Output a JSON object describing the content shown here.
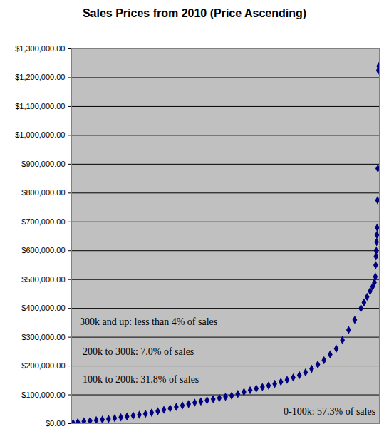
{
  "chart_data": {
    "type": "scatter",
    "title": "Sales Prices from 2010 (Price Ascending)",
    "x": [
      0.5,
      2,
      4,
      6,
      8,
      10,
      12,
      14,
      16,
      18,
      20,
      22,
      24,
      26,
      28,
      30,
      32,
      34,
      36,
      38,
      40,
      42,
      44,
      46,
      48,
      50,
      52,
      54,
      56,
      58,
      60,
      62,
      64,
      66,
      68,
      70,
      72,
      74,
      76,
      78,
      80,
      82,
      84,
      86,
      88,
      90,
      92,
      94,
      95,
      96,
      97,
      97.8,
      98.4,
      98.7,
      98.8,
      98.9,
      99.0,
      99.1,
      99.2,
      99.3,
      99.4,
      99.5,
      99.7,
      99.8
    ],
    "values": [
      2000,
      5000,
      8000,
      10000,
      12000,
      14000,
      16000,
      19000,
      22000,
      25000,
      28000,
      31000,
      34000,
      38000,
      43000,
      48000,
      53000,
      58000,
      63000,
      68000,
      73000,
      77000,
      81000,
      85000,
      89000,
      93000,
      97000,
      103000,
      110000,
      116000,
      122000,
      127000,
      132000,
      138000,
      145000,
      152000,
      160000,
      168000,
      178000,
      190000,
      205000,
      220000,
      240000,
      260000,
      290000,
      325000,
      360000,
      400000,
      420000,
      440000,
      460000,
      475000,
      490000,
      510000,
      550000,
      580000,
      600000,
      630000,
      655000,
      680000,
      775000,
      885000,
      1225000,
      1240000
    ],
    "color": "#000080",
    "marker": "diamond",
    "xlim": [
      0,
      100
    ],
    "ylim": [
      0,
      1300000
    ],
    "yticks": [
      {
        "value": 0,
        "label": "$0.00"
      },
      {
        "value": 100000,
        "label": "$100,000.00"
      },
      {
        "value": 200000,
        "label": "$200,000.00"
      },
      {
        "value": 300000,
        "label": "$300,000.00"
      },
      {
        "value": 400000,
        "label": "$400,000.00"
      },
      {
        "value": 500000,
        "label": "$500,000.00"
      },
      {
        "value": 600000,
        "label": "$600,000.00"
      },
      {
        "value": 700000,
        "label": "$700,000.00"
      },
      {
        "value": 800000,
        "label": "$800,000.00"
      },
      {
        "value": 900000,
        "label": "$900,000.00"
      },
      {
        "value": 1000000,
        "label": "$1,000,000.00"
      },
      {
        "value": 1100000,
        "label": "$1,100,000.00"
      },
      {
        "value": 1200000,
        "label": "$1,200,000.00"
      },
      {
        "value": 1300000,
        "label": "$1,300,000.00"
      }
    ],
    "grid": true,
    "tick_labels": "y",
    "annotations": [
      "300k and up: less than 4% of sales",
      "200k to 300k: 7.0% of sales",
      "100k to 200k: 31.8% of sales",
      "0-100k: 57.3% of sales"
    ]
  }
}
